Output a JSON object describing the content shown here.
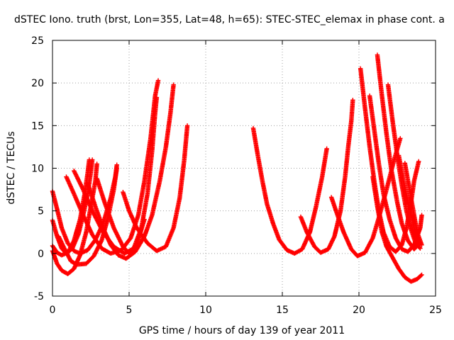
{
  "chart_data": {
    "type": "scatter",
    "title": "dSTEC Iono. truth (brst, Lon=355, Lat=48, h=65): STEC-STEC_elemax in phase cont. a",
    "xlabel": "GPS time / hours of day 139 of year 2011",
    "ylabel": "dSTEC  / TECUs",
    "xlim": [
      0,
      25
    ],
    "ylim": [
      -5,
      25
    ],
    "xticks": [
      0,
      5,
      10,
      15,
      20,
      25
    ],
    "yticks": [
      -5,
      0,
      5,
      10,
      15,
      20,
      25
    ],
    "grid": true,
    "marker": "plus",
    "color": "#ff0000",
    "series": [
      {
        "points": [
          [
            0.0,
            7.3
          ],
          [
            0.3,
            5.2
          ],
          [
            0.6,
            3.0
          ],
          [
            1.0,
            1.2
          ],
          [
            1.4,
            0.3
          ],
          [
            1.8,
            0.0
          ],
          [
            2.3,
            0.4
          ],
          [
            2.8,
            1.6
          ],
          [
            3.3,
            3.5
          ],
          [
            3.8,
            6.5
          ],
          [
            4.1,
            9.0
          ],
          [
            4.2,
            10.4
          ]
        ]
      },
      {
        "points": [
          [
            0.0,
            3.9
          ],
          [
            0.3,
            2.0
          ],
          [
            0.6,
            0.6
          ],
          [
            0.9,
            0.0
          ],
          [
            1.3,
            0.6
          ],
          [
            1.7,
            2.3
          ],
          [
            2.0,
            4.5
          ],
          [
            2.3,
            7.0
          ],
          [
            2.5,
            9.5
          ],
          [
            2.6,
            11.0
          ]
        ]
      },
      {
        "points": [
          [
            0.0,
            0.9
          ],
          [
            0.3,
            0.1
          ],
          [
            0.6,
            -0.2
          ],
          [
            1.0,
            0.1
          ],
          [
            1.4,
            1.5
          ],
          [
            1.8,
            4.0
          ],
          [
            2.1,
            7.0
          ],
          [
            2.3,
            9.5
          ],
          [
            2.4,
            11.0
          ]
        ]
      },
      {
        "points": [
          [
            0.0,
            0.3
          ],
          [
            0.3,
            -1.2
          ],
          [
            0.6,
            -2.0
          ],
          [
            1.0,
            -2.4
          ],
          [
            1.4,
            -1.8
          ],
          [
            1.8,
            -0.2
          ],
          [
            2.2,
            2.5
          ],
          [
            2.5,
            5.5
          ],
          [
            2.8,
            8.5
          ],
          [
            2.9,
            10.5
          ]
        ]
      },
      {
        "points": [
          [
            0.9,
            9.0
          ],
          [
            1.4,
            7.0
          ],
          [
            2.0,
            4.5
          ],
          [
            2.6,
            2.2
          ],
          [
            3.2,
            0.6
          ],
          [
            3.8,
            0.0
          ],
          [
            4.5,
            0.4
          ],
          [
            5.1,
            1.8
          ],
          [
            5.6,
            4.5
          ],
          [
            6.0,
            8.5
          ],
          [
            6.4,
            13.5
          ],
          [
            6.7,
            18.5
          ],
          [
            6.9,
            20.3
          ]
        ]
      },
      {
        "points": [
          [
            1.4,
            9.7
          ],
          [
            2.0,
            7.5
          ],
          [
            2.6,
            5.0
          ],
          [
            3.3,
            2.5
          ],
          [
            4.0,
            0.8
          ],
          [
            4.7,
            0.0
          ],
          [
            5.3,
            0.6
          ],
          [
            5.8,
            3.0
          ],
          [
            6.2,
            7.0
          ],
          [
            6.5,
            12.0
          ],
          [
            6.7,
            16.5
          ],
          [
            6.8,
            18.3
          ]
        ]
      },
      {
        "points": [
          [
            2.9,
            8.8
          ],
          [
            3.4,
            6.0
          ],
          [
            4.0,
            3.0
          ],
          [
            4.6,
            0.8
          ],
          [
            5.0,
            0.0
          ],
          [
            5.5,
            1.0
          ],
          [
            6.0,
            4.0
          ]
        ]
      },
      {
        "points": [
          [
            4.6,
            7.2
          ],
          [
            5.0,
            5.0
          ],
          [
            5.5,
            3.0
          ],
          [
            6.2,
            1.2
          ],
          [
            6.8,
            0.3
          ],
          [
            7.4,
            0.8
          ],
          [
            7.9,
            3.0
          ],
          [
            8.3,
            6.5
          ],
          [
            8.6,
            11.0
          ],
          [
            8.8,
            15.0
          ]
        ]
      },
      {
        "points": [
          [
            2.3,
            8.2
          ],
          [
            2.8,
            5.5
          ],
          [
            3.3,
            3.0
          ],
          [
            3.8,
            1.0
          ],
          [
            4.3,
            -0.2
          ],
          [
            4.8,
            -0.6
          ],
          [
            5.4,
            0.2
          ],
          [
            6.0,
            2.0
          ],
          [
            6.5,
            4.5
          ],
          [
            7.0,
            8.5
          ],
          [
            7.4,
            12.5
          ],
          [
            7.7,
            16.5
          ],
          [
            7.9,
            19.8
          ]
        ]
      },
      {
        "points": [
          [
            0.4,
            2.0
          ],
          [
            0.8,
            0.5
          ],
          [
            1.2,
            -0.9
          ],
          [
            1.6,
            -1.3
          ],
          [
            2.2,
            -1.2
          ],
          [
            2.7,
            -0.3
          ],
          [
            3.2,
            1.5
          ],
          [
            3.6,
            4.0
          ],
          [
            4.0,
            7.5
          ],
          [
            4.2,
            10.0
          ]
        ]
      },
      {
        "points": [
          [
            13.1,
            14.7
          ],
          [
            13.4,
            11.5
          ],
          [
            13.7,
            8.5
          ],
          [
            14.0,
            5.8
          ],
          [
            14.4,
            3.5
          ],
          [
            14.8,
            1.6
          ],
          [
            15.3,
            0.4
          ],
          [
            15.8,
            0.0
          ],
          [
            16.3,
            0.5
          ],
          [
            16.8,
            2.5
          ],
          [
            17.2,
            5.5
          ],
          [
            17.6,
            9.0
          ],
          [
            17.9,
            12.3
          ]
        ]
      },
      {
        "points": [
          [
            16.2,
            4.3
          ],
          [
            16.6,
            2.5
          ],
          [
            17.1,
            0.8
          ],
          [
            17.5,
            0.1
          ],
          [
            18.0,
            0.5
          ],
          [
            18.4,
            2.0
          ],
          [
            18.8,
            5.0
          ],
          [
            19.1,
            9.0
          ],
          [
            19.3,
            12.5
          ],
          [
            19.5,
            15.5
          ],
          [
            19.6,
            18.0
          ]
        ]
      },
      {
        "points": [
          [
            18.2,
            6.6
          ],
          [
            18.6,
            4.5
          ],
          [
            19.0,
            2.5
          ],
          [
            19.5,
            0.5
          ],
          [
            19.9,
            -0.3
          ],
          [
            20.4,
            0.1
          ],
          [
            20.9,
            1.8
          ],
          [
            21.3,
            4.2
          ],
          [
            21.8,
            7.5
          ],
          [
            22.3,
            11.0
          ],
          [
            22.7,
            13.5
          ]
        ]
      },
      {
        "points": [
          [
            20.1,
            21.7
          ],
          [
            20.4,
            17.0
          ],
          [
            20.7,
            12.5
          ],
          [
            21.0,
            8.5
          ],
          [
            21.3,
            5.0
          ],
          [
            21.6,
            2.5
          ],
          [
            22.0,
            0.8
          ],
          [
            22.4,
            0.2
          ],
          [
            22.8,
            1.0
          ],
          [
            23.1,
            3.0
          ],
          [
            23.4,
            6.0
          ],
          [
            23.6,
            8.5
          ],
          [
            23.9,
            10.8
          ]
        ]
      },
      {
        "points": [
          [
            20.7,
            18.5
          ],
          [
            21.0,
            14.5
          ],
          [
            21.3,
            10.5
          ],
          [
            21.6,
            7.0
          ],
          [
            22.0,
            4.0
          ],
          [
            22.4,
            1.8
          ],
          [
            22.8,
            0.5
          ],
          [
            23.2,
            0.2
          ],
          [
            23.6,
            1.0
          ],
          [
            24.0,
            3.0
          ],
          [
            24.1,
            4.5
          ]
        ]
      },
      {
        "points": [
          [
            21.2,
            23.3
          ],
          [
            21.5,
            18.5
          ],
          [
            21.8,
            14.0
          ],
          [
            22.1,
            10.0
          ],
          [
            22.5,
            6.0
          ],
          [
            22.8,
            3.5
          ],
          [
            23.2,
            1.5
          ],
          [
            23.6,
            0.5
          ],
          [
            24.0,
            1.3
          ]
        ]
      },
      {
        "points": [
          [
            21.9,
            19.8
          ],
          [
            22.2,
            15.5
          ],
          [
            22.5,
            11.5
          ],
          [
            22.8,
            8.0
          ],
          [
            23.1,
            5.0
          ],
          [
            23.4,
            2.8
          ],
          [
            23.7,
            1.2
          ],
          [
            24.0,
            0.6
          ]
        ]
      },
      {
        "points": [
          [
            23.0,
            10.6
          ],
          [
            23.3,
            7.5
          ],
          [
            23.6,
            4.5
          ],
          [
            23.8,
            2.5
          ],
          [
            24.1,
            1.0
          ]
        ]
      },
      {
        "points": [
          [
            20.9,
            9.0
          ],
          [
            21.2,
            5.5
          ],
          [
            21.5,
            2.5
          ],
          [
            21.8,
            0.8
          ],
          [
            22.2,
            -0.5
          ],
          [
            22.6,
            -1.8
          ],
          [
            23.0,
            -2.8
          ],
          [
            23.4,
            -3.3
          ],
          [
            23.8,
            -3.0
          ],
          [
            24.1,
            -2.5
          ]
        ]
      },
      {
        "points": [
          [
            22.6,
            11.5
          ],
          [
            22.9,
            8.5
          ],
          [
            23.2,
            6.0
          ],
          [
            23.5,
            3.8
          ],
          [
            23.7,
            2.0
          ],
          [
            24.0,
            1.0
          ]
        ]
      }
    ]
  }
}
